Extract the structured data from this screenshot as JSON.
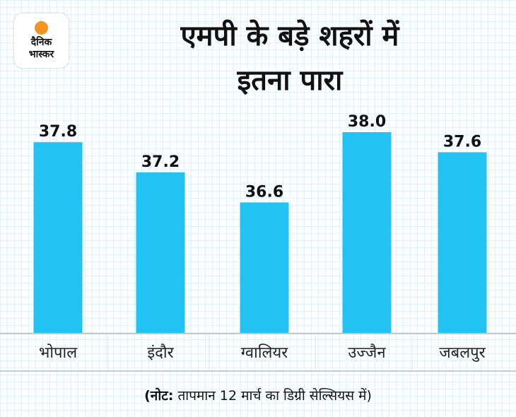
{
  "logo": {
    "line1": "दैनिक",
    "line2": "भास्कर",
    "sun_color": "#f39322"
  },
  "header": {
    "title_line1": "एमपी के बड़े शहरों में",
    "title_line2": "इतना पारा"
  },
  "chart_data": {
    "type": "bar",
    "title": "एमपी के बड़े शहरों में इतना पारा",
    "categories": [
      "भोपाल",
      "इंदौर",
      "ग्वालियर",
      "उज्जैन",
      "जबलपुर"
    ],
    "values": [
      37.8,
      37.2,
      36.6,
      38.0,
      37.6
    ],
    "value_labels": [
      "37.8",
      "37.2",
      "36.6",
      "38.0",
      "37.6"
    ],
    "xlabel": "",
    "ylabel": "",
    "ylim": [
      34.0,
      38.5
    ],
    "bar_color": "#22c3f3",
    "grid": false,
    "legend": "none"
  },
  "footer": {
    "note_bold": "(नोट:",
    "note_rest": " तापमान 12 मार्च का डिग्री सेल्सियस में)"
  }
}
